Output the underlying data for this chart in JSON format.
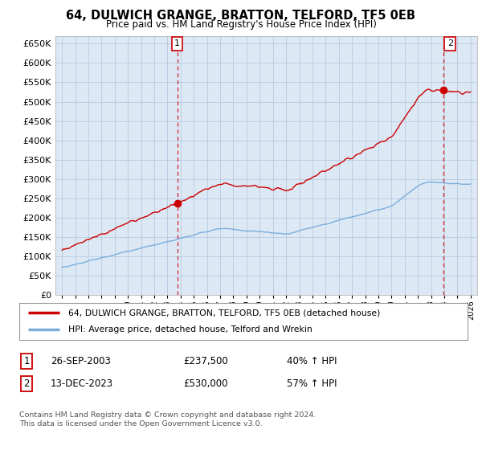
{
  "title": "64, DULWICH GRANGE, BRATTON, TELFORD, TF5 0EB",
  "subtitle": "Price paid vs. HM Land Registry's House Price Index (HPI)",
  "ytick_values": [
    0,
    50000,
    100000,
    150000,
    200000,
    250000,
    300000,
    350000,
    400000,
    450000,
    500000,
    550000,
    600000,
    650000
  ],
  "xlim_start": 1994.5,
  "xlim_end": 2026.5,
  "ylim": [
    0,
    670000
  ],
  "sale1_date": 2003.74,
  "sale1_price": 237500,
  "sale2_date": 2023.95,
  "sale2_price": 530000,
  "hpi_color": "#7aaedc",
  "price_color": "#cc0000",
  "vline_color": "#cc0000",
  "chart_bg": "#dde8f5",
  "legend_label1": "64, DULWICH GRANGE, BRATTON, TELFORD, TF5 0EB (detached house)",
  "legend_label2": "HPI: Average price, detached house, Telford and Wrekin",
  "table_row1": [
    "1",
    "26-SEP-2003",
    "£237,500",
    "40% ↑ HPI"
  ],
  "table_row2": [
    "2",
    "13-DEC-2023",
    "£530,000",
    "57% ↑ HPI"
  ],
  "footnote": "Contains HM Land Registry data © Crown copyright and database right 2024.\nThis data is licensed under the Open Government Licence v3.0.",
  "bg_color": "#ffffff",
  "grid_color": "#b0c4de"
}
